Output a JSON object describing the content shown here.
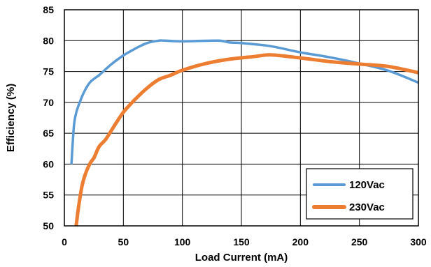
{
  "chart_data": {
    "type": "line",
    "title": "",
    "xlabel": "Load Current (mA)",
    "ylabel": "Efficiency (%)",
    "xlim": [
      0,
      300
    ],
    "ylim": [
      50,
      85
    ],
    "xticks": [
      0,
      50,
      100,
      150,
      200,
      250,
      300
    ],
    "yticks": [
      50,
      55,
      60,
      65,
      70,
      75,
      80,
      85
    ],
    "grid": true,
    "legend_position": "bottom-right",
    "series": [
      {
        "name": "120Vac",
        "color": "#5B9BD5",
        "x": [
          6,
          8,
          10,
          13,
          17,
          22,
          30,
          40,
          50,
          60,
          70,
          80,
          85,
          100,
          130,
          140,
          150,
          175,
          200,
          225,
          250,
          275,
          300
        ],
        "y": [
          60.0,
          66.0,
          68.3,
          70.0,
          71.8,
          73.3,
          74.5,
          76.2,
          77.6,
          78.7,
          79.6,
          80.0,
          80.0,
          79.9,
          80.0,
          79.7,
          79.6,
          79.1,
          78.1,
          77.3,
          76.3,
          75.1,
          73.2
        ]
      },
      {
        "name": "230Vac",
        "color": "#ED7D31",
        "x": [
          10,
          12,
          15,
          18,
          22,
          25,
          28,
          30,
          35,
          40,
          45,
          50,
          55,
          60,
          70,
          80,
          90,
          100,
          120,
          140,
          160,
          175,
          200,
          225,
          250,
          275,
          300
        ],
        "y": [
          50.0,
          53.0,
          56.5,
          58.5,
          60.2,
          61.0,
          62.3,
          63.0,
          64.0,
          65.5,
          67.0,
          68.4,
          69.5,
          70.5,
          72.3,
          73.7,
          74.4,
          75.2,
          76.3,
          77.0,
          77.4,
          77.7,
          77.2,
          76.6,
          76.2,
          75.8,
          74.8
        ]
      }
    ]
  }
}
